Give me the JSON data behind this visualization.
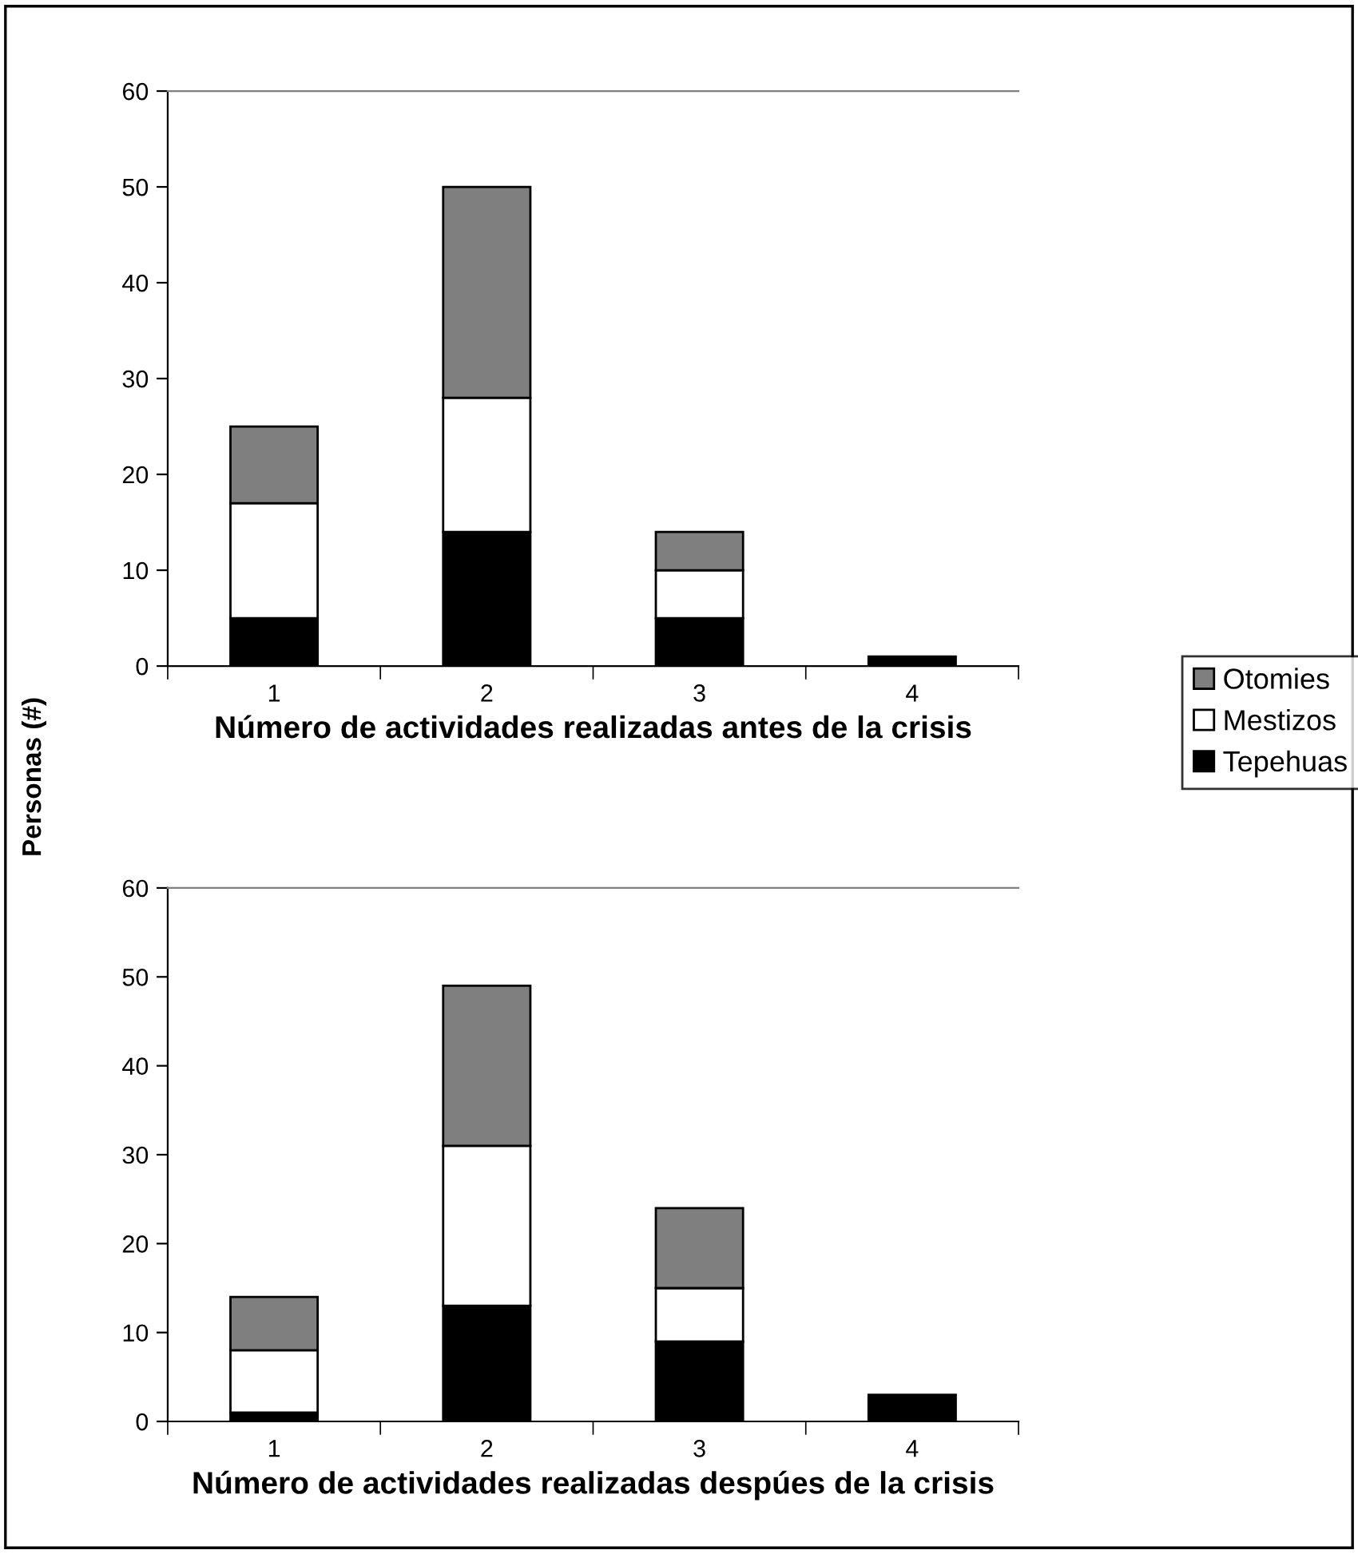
{
  "chart_data": [
    {
      "type": "bar",
      "stacked": true,
      "xlabel": "Número de actividades realizadas antes de la crisis",
      "ylabel": "Personas (#)",
      "categories": [
        "1",
        "2",
        "3",
        "4"
      ],
      "ylim": [
        0,
        60
      ],
      "yticks": [
        0,
        10,
        20,
        30,
        40,
        50,
        60
      ],
      "legend": "right",
      "grid": false,
      "series": [
        {
          "name": "Tepehuas",
          "color": "#000000",
          "values": [
            5,
            14,
            5,
            1
          ]
        },
        {
          "name": "Mestizos",
          "color": "#ffffff",
          "values": [
            12,
            14,
            5,
            0
          ]
        },
        {
          "name": "Otomies",
          "color": "#7f7f7f",
          "values": [
            8,
            22,
            4,
            0
          ]
        }
      ]
    },
    {
      "type": "bar",
      "stacked": true,
      "xlabel": "Número de actividades realizadas despúes de la crisis",
      "categories": [
        "1",
        "2",
        "3",
        "4"
      ],
      "ylim": [
        0,
        60
      ],
      "yticks": [
        0,
        10,
        20,
        30,
        40,
        50,
        60
      ],
      "grid": false,
      "series": [
        {
          "color": "#000000",
          "values": [
            1,
            13,
            9,
            3
          ]
        },
        {
          "color": "#ffffff",
          "values": [
            7,
            18,
            6,
            0
          ]
        },
        {
          "color": "#7f7f7f",
          "values": [
            6,
            18,
            9,
            0
          ]
        }
      ]
    }
  ]
}
